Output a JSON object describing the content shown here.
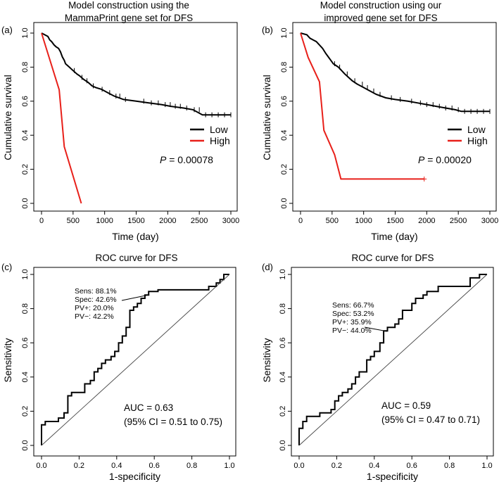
{
  "chart_data": [
    {
      "id": "a",
      "type": "line",
      "panel_label": "(a)",
      "title": [
        "Model construction using the",
        "MammaPrint gene set for DFS"
      ],
      "xlabel": "Time (day)",
      "ylabel": "Cumulative survival",
      "xlim": [
        0,
        3000
      ],
      "ylim": [
        0,
        1
      ],
      "xticks": [
        0,
        500,
        1000,
        1500,
        2000,
        2500,
        3000
      ],
      "yticks": [
        0.0,
        0.2,
        0.4,
        0.6,
        0.8,
        1.0
      ],
      "ytick_labels": [
        "0.0",
        "0.2",
        "0.4",
        "0.6",
        "0.8",
        "1.0"
      ],
      "legend": {
        "position": "right",
        "items": [
          {
            "label": "Low",
            "color": "#000000"
          },
          {
            "label": "High",
            "color": "#e8201a"
          }
        ]
      },
      "p_label": "P",
      "p_value": " = 0.00078",
      "series": [
        {
          "name": "Low",
          "color": "#000000",
          "x": [
            0,
            100,
            130,
            160,
            200,
            230,
            270,
            300,
            330,
            360,
            380,
            410,
            440,
            470,
            500,
            530,
            560,
            600,
            630,
            660,
            700,
            740,
            800,
            860,
            950,
            1050,
            1150,
            1300,
            1500,
            1700,
            1900,
            2050,
            2250,
            2400,
            2550,
            3000
          ],
          "y": [
            1.0,
            0.98,
            0.96,
            0.95,
            0.93,
            0.92,
            0.91,
            0.89,
            0.86,
            0.84,
            0.82,
            0.81,
            0.8,
            0.79,
            0.78,
            0.77,
            0.76,
            0.75,
            0.74,
            0.73,
            0.72,
            0.71,
            0.69,
            0.68,
            0.67,
            0.65,
            0.63,
            0.61,
            0.6,
            0.59,
            0.58,
            0.57,
            0.56,
            0.55,
            0.52,
            0.52
          ],
          "censor_x": [
            520,
            640,
            720,
            820,
            960,
            1080,
            1180,
            1240,
            1330,
            1620,
            1740,
            1850,
            1960,
            2040,
            2120,
            2200,
            2300,
            2420,
            2500,
            2600,
            2700,
            2800,
            2900,
            3000
          ]
        },
        {
          "name": "High",
          "color": "#e8201a",
          "x": [
            0,
            280,
            360,
            630
          ],
          "y": [
            1.0,
            0.667,
            0.333,
            0.0
          ],
          "censor_x": []
        }
      ]
    },
    {
      "id": "b",
      "type": "line",
      "panel_label": "(b)",
      "title": [
        "Model construction using our",
        "improved gene set for DFS"
      ],
      "xlabel": "Time (day)",
      "ylabel": "Cumulative survival",
      "xlim": [
        0,
        3000
      ],
      "ylim": [
        0,
        1
      ],
      "xticks": [
        0,
        500,
        1000,
        1500,
        2000,
        2500,
        3000
      ],
      "yticks": [
        0.0,
        0.2,
        0.4,
        0.6,
        0.8,
        1.0
      ],
      "ytick_labels": [
        "0.0",
        "0.2",
        "0.4",
        "0.6",
        "0.8",
        "1.0"
      ],
      "legend": {
        "position": "right",
        "items": [
          {
            "label": "Low",
            "color": "#000000"
          },
          {
            "label": "High",
            "color": "#e8201a"
          }
        ]
      },
      "p_label": "P",
      "p_value": " = 0.00020",
      "series": [
        {
          "name": "Low",
          "color": "#000000",
          "x": [
            0,
            100,
            150,
            200,
            250,
            300,
            350,
            400,
            440,
            480,
            520,
            560,
            600,
            650,
            700,
            760,
            820,
            900,
            1000,
            1100,
            1200,
            1350,
            1500,
            1700,
            1850,
            2000,
            2150,
            2300,
            2450,
            2550,
            3000
          ],
          "y": [
            1.0,
            0.99,
            0.97,
            0.96,
            0.95,
            0.93,
            0.91,
            0.88,
            0.86,
            0.84,
            0.82,
            0.81,
            0.8,
            0.78,
            0.76,
            0.74,
            0.72,
            0.7,
            0.68,
            0.66,
            0.64,
            0.62,
            0.61,
            0.6,
            0.59,
            0.58,
            0.57,
            0.56,
            0.55,
            0.54,
            0.54
          ],
          "censor_x": [
            540,
            620,
            740,
            860,
            980,
            1060,
            1160,
            1260,
            1440,
            1580,
            1760,
            1900,
            2000,
            2100,
            2200,
            2300,
            2400,
            2500,
            2600,
            2700,
            2800,
            2900,
            3000
          ]
        },
        {
          "name": "High",
          "color": "#e8201a",
          "x": [
            0,
            120,
            300,
            370,
            540,
            640,
            1960
          ],
          "y": [
            1.0,
            0.857,
            0.714,
            0.429,
            0.286,
            0.143,
            0.143
          ],
          "censor_x": [
            1960
          ]
        }
      ]
    },
    {
      "id": "c",
      "type": "line",
      "panel_label": "(c)",
      "title": [
        "ROC curve for DFS"
      ],
      "xlabel": "1-specificity",
      "ylabel": "Sensitivity",
      "xlim": [
        0,
        1
      ],
      "ylim": [
        0,
        1
      ],
      "xticks": [
        0.0,
        0.2,
        0.4,
        0.6,
        0.8,
        1.0
      ],
      "xtick_labels": [
        "0.0",
        "0.2",
        "0.4",
        "0.6",
        "0.8",
        "1.0"
      ],
      "yticks": [
        0.0,
        0.2,
        0.4,
        0.6,
        0.8,
        1.0
      ],
      "ytick_labels": [
        "0.0",
        "0.2",
        "0.4",
        "0.6",
        "0.8",
        "1.0"
      ],
      "annotation": [
        "Sens: 88.1%",
        "Spec: 42.6%",
        "PV+: 20.0%",
        "PV−: 42.2%"
      ],
      "annotation_point": [
        0.574,
        0.881
      ],
      "auc_text": [
        "AUC = 0.63",
        "(95% CI = 0.51 to 0.75)"
      ],
      "series": [
        {
          "name": "ROC",
          "color": "#000000",
          "x": [
            0,
            0,
            0.02,
            0.02,
            0.09,
            0.09,
            0.12,
            0.12,
            0.14,
            0.14,
            0.16,
            0.16,
            0.23,
            0.23,
            0.26,
            0.26,
            0.28,
            0.28,
            0.3,
            0.3,
            0.32,
            0.32,
            0.34,
            0.34,
            0.37,
            0.37,
            0.39,
            0.39,
            0.41,
            0.41,
            0.43,
            0.43,
            0.45,
            0.45,
            0.47,
            0.47,
            0.49,
            0.49,
            0.51,
            0.51,
            0.53,
            0.53,
            0.55,
            0.55,
            0.57,
            0.57,
            0.62,
            0.62,
            0.89,
            0.89,
            0.93,
            0.93,
            0.95,
            0.95,
            0.97,
            0.97,
            1.0
          ],
          "y": [
            0,
            0.12,
            0.12,
            0.14,
            0.14,
            0.16,
            0.16,
            0.19,
            0.19,
            0.29,
            0.29,
            0.31,
            0.31,
            0.36,
            0.36,
            0.38,
            0.38,
            0.43,
            0.43,
            0.45,
            0.45,
            0.48,
            0.48,
            0.5,
            0.5,
            0.52,
            0.52,
            0.55,
            0.55,
            0.6,
            0.6,
            0.64,
            0.64,
            0.69,
            0.69,
            0.79,
            0.79,
            0.81,
            0.81,
            0.83,
            0.83,
            0.86,
            0.86,
            0.88,
            0.88,
            0.9,
            0.9,
            0.91,
            0.91,
            0.93,
            0.93,
            0.95,
            0.95,
            0.97,
            0.97,
            1.0,
            1.0
          ]
        },
        {
          "name": "Reference",
          "color": "#444444",
          "x": [
            0,
            1
          ],
          "y": [
            0,
            1
          ]
        }
      ]
    },
    {
      "id": "d",
      "type": "line",
      "panel_label": "(d)",
      "title": [
        "ROC curve for DFS"
      ],
      "xlabel": "1-specificity",
      "ylabel": "Sensitivity",
      "xlim": [
        0,
        1
      ],
      "ylim": [
        0,
        1
      ],
      "xticks": [
        0.0,
        0.2,
        0.4,
        0.6,
        0.8,
        1.0
      ],
      "xtick_labels": [
        "0.0",
        "0.2",
        "0.4",
        "0.6",
        "0.8",
        "1.0"
      ],
      "yticks": [
        0.0,
        0.2,
        0.4,
        0.6,
        0.8,
        1.0
      ],
      "ytick_labels": [
        "0.0",
        "0.2",
        "0.4",
        "0.6",
        "0.8",
        "1.0"
      ],
      "annotation": [
        "Sens: 66.7%",
        "Spec: 53.2%",
        "PV+: 35.9%",
        "PV−: 44.0%"
      ],
      "annotation_point": [
        0.468,
        0.667
      ],
      "auc_text": [
        "AUC = 0.59",
        "(95% CI = 0.47 to 0.71)"
      ],
      "series": [
        {
          "name": "ROC",
          "color": "#000000",
          "x": [
            0,
            0,
            0.02,
            0.02,
            0.04,
            0.04,
            0.11,
            0.11,
            0.17,
            0.17,
            0.19,
            0.19,
            0.21,
            0.21,
            0.23,
            0.23,
            0.26,
            0.26,
            0.28,
            0.28,
            0.3,
            0.3,
            0.32,
            0.32,
            0.36,
            0.36,
            0.38,
            0.38,
            0.4,
            0.4,
            0.43,
            0.43,
            0.45,
            0.45,
            0.47,
            0.47,
            0.51,
            0.51,
            0.53,
            0.53,
            0.55,
            0.55,
            0.6,
            0.6,
            0.62,
            0.62,
            0.66,
            0.66,
            0.68,
            0.68,
            0.74,
            0.74,
            0.91,
            0.91,
            0.96,
            0.96,
            1.0
          ],
          "y": [
            0,
            0.1,
            0.1,
            0.14,
            0.14,
            0.17,
            0.17,
            0.19,
            0.19,
            0.21,
            0.21,
            0.26,
            0.26,
            0.29,
            0.29,
            0.31,
            0.31,
            0.33,
            0.33,
            0.36,
            0.36,
            0.4,
            0.4,
            0.43,
            0.43,
            0.5,
            0.5,
            0.52,
            0.52,
            0.55,
            0.55,
            0.6,
            0.6,
            0.67,
            0.67,
            0.69,
            0.69,
            0.71,
            0.71,
            0.74,
            0.74,
            0.79,
            0.79,
            0.83,
            0.83,
            0.86,
            0.86,
            0.88,
            0.88,
            0.9,
            0.9,
            0.93,
            0.93,
            0.98,
            0.98,
            1.0,
            1.0
          ]
        },
        {
          "name": "Reference",
          "color": "#444444",
          "x": [
            0,
            1
          ],
          "y": [
            0,
            1
          ]
        }
      ]
    }
  ]
}
